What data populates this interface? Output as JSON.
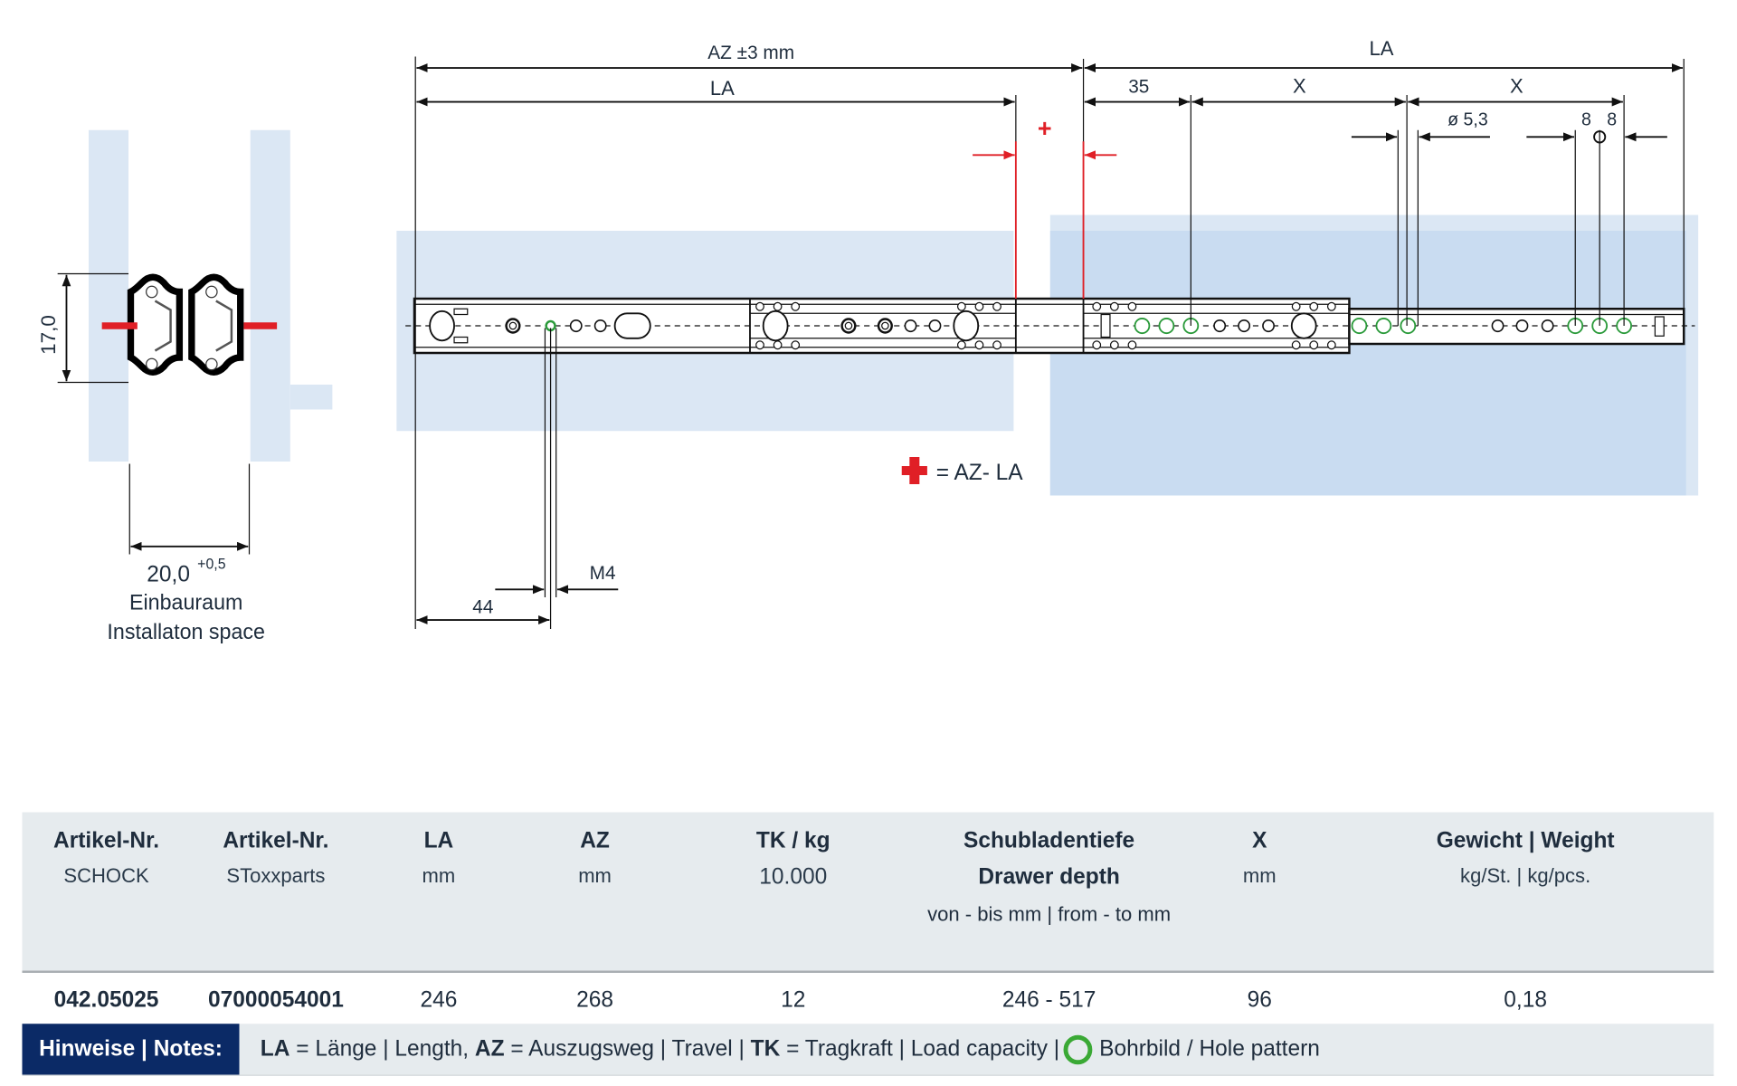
{
  "drawing": {
    "dim_height": "17,0",
    "dim_width": "20,0",
    "dim_width_tol": "+0,5",
    "install_de": "Einbauraum",
    "install_en": "Installaton space",
    "az": "AZ ±3 mm",
    "la_top": "LA",
    "la_left": "LA",
    "d35": "35",
    "x1": "X",
    "x2": "X",
    "dia": "ø 5,3",
    "e8a": "8",
    "e8b": "8",
    "plus": "+",
    "legend": "= AZ- LA",
    "d44": "44",
    "m4": "M4",
    "colors": {
      "panel": "#dbe7f4",
      "panel_dark": "#c9dcf1",
      "red": "#e01f26",
      "green": "#2a9a3a"
    }
  },
  "table": {
    "headers": [
      {
        "title": "Artikel-Nr.",
        "sub": "SCHOCK",
        "sub2": ""
      },
      {
        "title": "Artikel-Nr.",
        "sub": "SToxxparts",
        "sub2": ""
      },
      {
        "title": "LA",
        "sub": "mm",
        "sub2": ""
      },
      {
        "title": "AZ",
        "sub": "mm",
        "sub2": ""
      },
      {
        "title": "TK / kg",
        "sub": "10.000",
        "sub2": ""
      },
      {
        "title": "Schubladentiefe",
        "sub": "Drawer depth",
        "sub2": "von - bis mm | from - to mm"
      },
      {
        "title": "X",
        "sub": "mm",
        "sub2": ""
      },
      {
        "title": "Gewicht | Weight",
        "sub": "kg/St. | kg/pcs.",
        "sub2": ""
      }
    ],
    "rows": [
      [
        "042.05025",
        "07000054001",
        "246",
        "268",
        "12",
        "246 - 517",
        "96",
        "0,18"
      ]
    ],
    "notes_label": "Hinweise | Notes:",
    "notes": {
      "la_key": "LA",
      "la_text": " = Länge | Length, ",
      "az_key": "AZ",
      "az_text": " = Auszugsweg | Travel |  ",
      "tk_key": "TK",
      "tk_text": " = Tragkraft | Load capacity |",
      "hole_text": "Bohrbild / Hole pattern"
    }
  }
}
